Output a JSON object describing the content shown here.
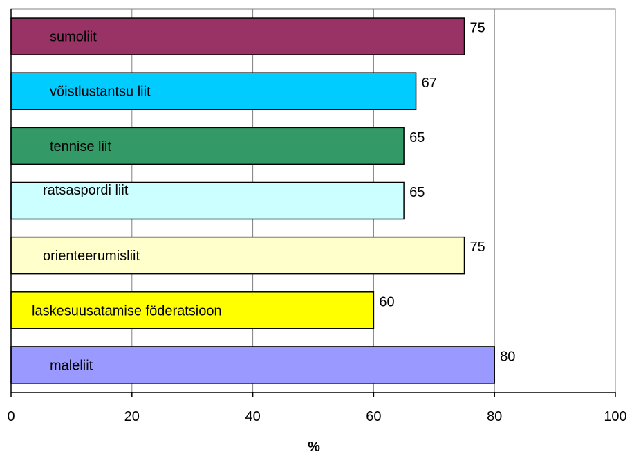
{
  "chart_data": {
    "type": "bar",
    "orientation": "horizontal",
    "categories": [
      "sumoliit",
      "võistlustantsu liit",
      "tennise liit",
      "ratsaspordi liit",
      "orienteerumisliit",
      "laskesuusatamise föderatsioon",
      "maleliit"
    ],
    "values": [
      75,
      67,
      65,
      65,
      75,
      60,
      80
    ],
    "colors": [
      "#993366",
      "#00ccff",
      "#339966",
      "#ccffff",
      "#ffffcc",
      "#ffff00",
      "#9999ff"
    ],
    "xlabel": "%",
    "xlim": [
      0,
      100
    ],
    "xticks": [
      "0",
      "20",
      "40",
      "60",
      "80",
      "100"
    ],
    "grid": "vertical",
    "legend": "none"
  }
}
